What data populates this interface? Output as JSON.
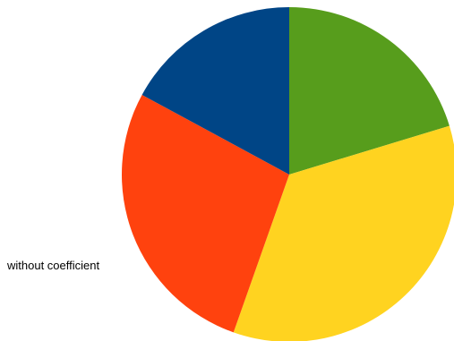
{
  "chart_data": {
    "type": "pie",
    "title": "",
    "side_label": "without coefficient",
    "slices": [
      {
        "value": 20.3,
        "color": "#579d1c"
      },
      {
        "value": 35.1,
        "color": "#ffd320"
      },
      {
        "value": 27.5,
        "color": "#ff420e"
      },
      {
        "value": 17.1,
        "color": "#004586"
      }
    ],
    "start_angle_deg": 0,
    "direction": "clockwise"
  }
}
